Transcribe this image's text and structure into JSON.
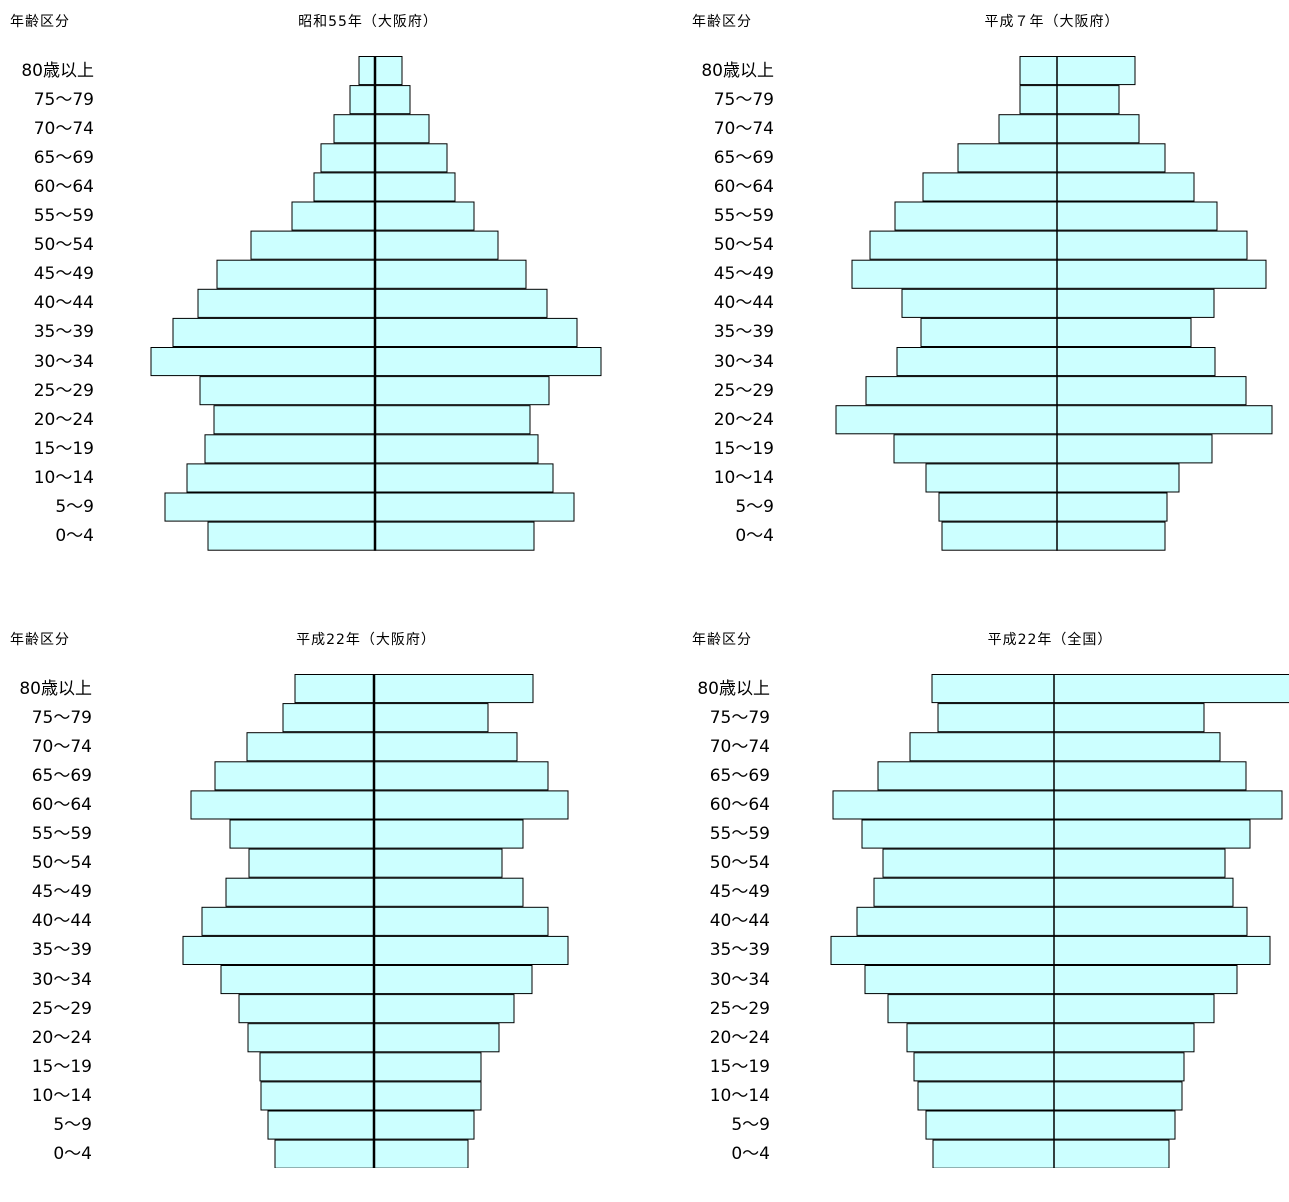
{
  "chart_data": [
    {
      "type": "bar",
      "title": "昭和55年（大阪府）",
      "ylabel": "年齢区分",
      "categories": [
        "80歳以上",
        "75〜79",
        "70〜74",
        "65〜69",
        "60〜64",
        "55〜59",
        "50〜54",
        "45〜49",
        "40〜44",
        "35〜39",
        "30〜34",
        "25〜29",
        "20〜24",
        "15〜19",
        "10〜14",
        "5〜9",
        "0〜4"
      ],
      "series": [
        {
          "values": [
            16,
            25,
            41,
            54,
            61,
            83,
            124,
            158,
            177,
            202,
            224,
            175,
            161,
            170,
            188,
            210,
            167
          ]
        },
        {
          "values": [
            27,
            35,
            54,
            72,
            80,
            99,
            123,
            151,
            172,
            202,
            226,
            174,
            155,
            163,
            178,
            199,
            159
          ]
        }
      ],
      "colors": {
        "bar_fill": "#ccffff",
        "bar_stroke": "#000000"
      }
    },
    {
      "type": "bar",
      "title": "平成７年（大阪府）",
      "ylabel": "年齢区分",
      "categories": [
        "80歳以上",
        "75〜79",
        "70〜74",
        "65〜69",
        "60〜64",
        "55〜59",
        "50〜54",
        "45〜49",
        "40〜44",
        "35〜39",
        "30〜34",
        "25〜29",
        "20〜24",
        "15〜19",
        "10〜14",
        "5〜9",
        "0〜4"
      ],
      "series": [
        {
          "values": [
            37,
            37,
            58,
            99,
            134,
            162,
            187,
            205,
            155,
            136,
            160,
            191,
            221,
            163,
            131,
            118,
            115
          ]
        },
        {
          "values": [
            78,
            62,
            82,
            108,
            137,
            160,
            190,
            209,
            157,
            134,
            158,
            189,
            215,
            155,
            122,
            110,
            108
          ]
        }
      ],
      "colors": {
        "bar_fill": "#ccffff",
        "bar_stroke": "#000000"
      }
    },
    {
      "type": "bar",
      "title": "平成22年（大阪府）",
      "ylabel": "年齢区分",
      "categories": [
        "80歳以上",
        "75〜79",
        "70〜74",
        "65〜69",
        "60〜64",
        "55〜59",
        "50〜54",
        "45〜49",
        "40〜44",
        "35〜39",
        "30〜34",
        "25〜29",
        "20〜24",
        "15〜19",
        "10〜14",
        "5〜9",
        "0〜4"
      ],
      "series": [
        {
          "values": [
            79,
            91,
            127,
            159,
            183,
            144,
            125,
            148,
            172,
            191,
            153,
            135,
            126,
            114,
            113,
            106,
            99
          ]
        },
        {
          "values": [
            159,
            114,
            143,
            174,
            194,
            149,
            128,
            149,
            174,
            194,
            158,
            140,
            125,
            107,
            107,
            100,
            94
          ]
        }
      ],
      "colors": {
        "bar_fill": "#ccffff",
        "bar_stroke": "#000000"
      }
    },
    {
      "type": "bar",
      "title": "平成22年（全国）",
      "ylabel": "年齢区分",
      "categories": [
        "80歳以上",
        "75〜79",
        "70〜74",
        "65〜69",
        "60〜64",
        "55〜59",
        "50〜54",
        "45〜49",
        "40〜44",
        "35〜39",
        "30〜34",
        "25〜29",
        "20〜24",
        "15〜19",
        "10〜14",
        "5〜9",
        "0〜4"
      ],
      "series": [
        {
          "values": [
            122,
            116,
            144,
            176,
            221,
            192,
            171,
            180,
            197,
            223,
            189,
            166,
            147,
            140,
            136,
            128,
            121
          ]
        },
        {
          "values": [
            240,
            150,
            166,
            192,
            228,
            196,
            171,
            179,
            193,
            216,
            183,
            160,
            140,
            130,
            128,
            121,
            115
          ]
        }
      ],
      "colors": {
        "bar_fill": "#ccffff",
        "bar_stroke": "#000000"
      }
    }
  ]
}
